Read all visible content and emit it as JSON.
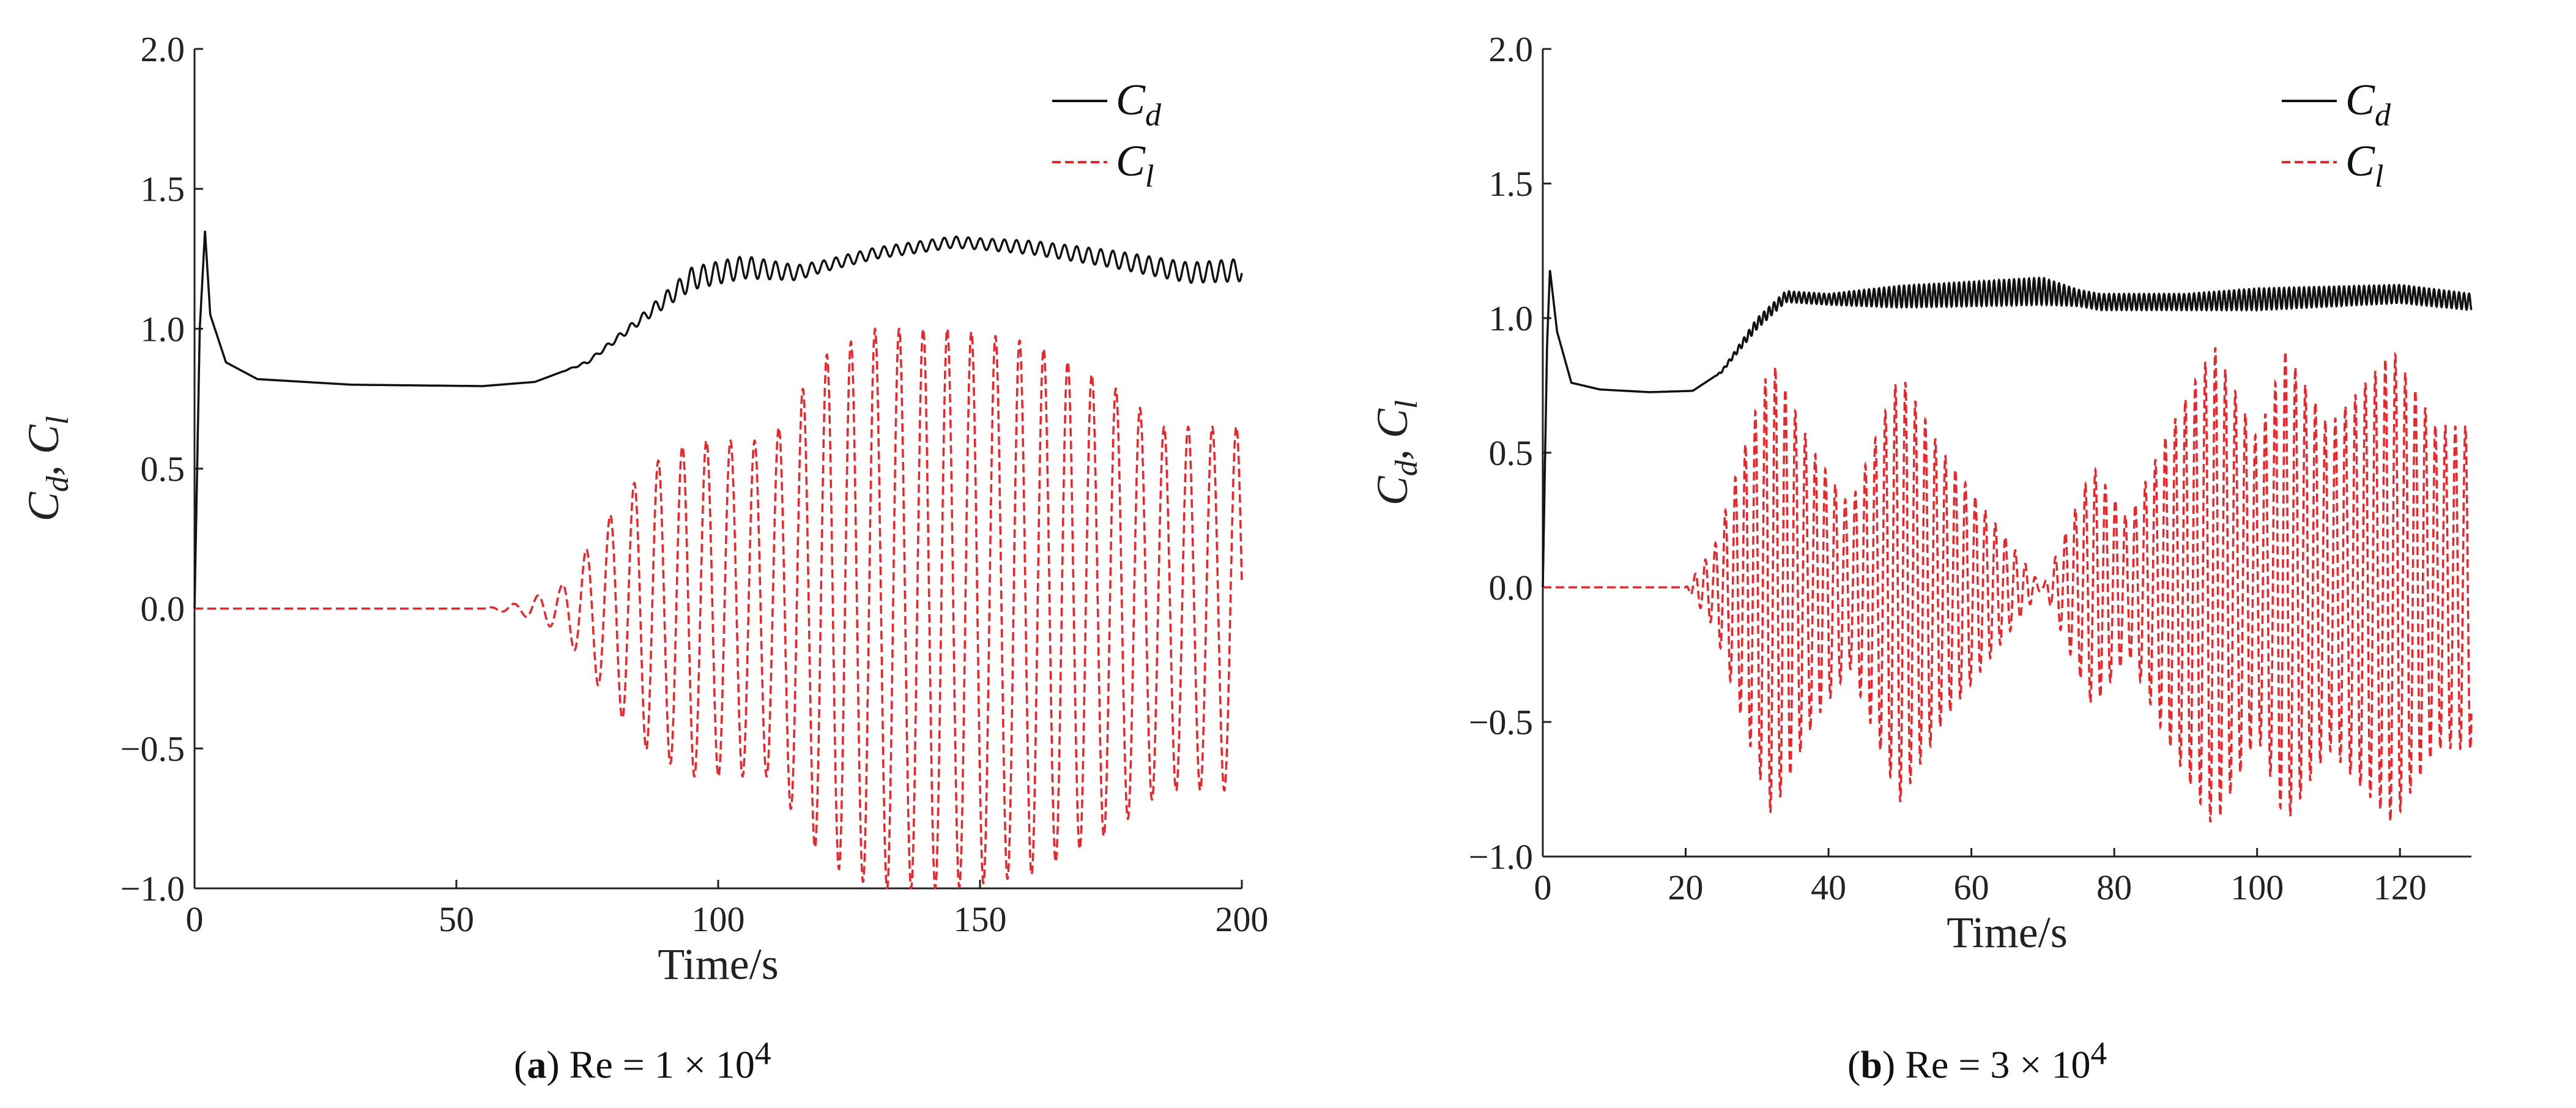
{
  "chart_data": [
    {
      "type": "line",
      "id": "panel-a",
      "xlabel": "Time/s",
      "ylabel": [
        "C",
        "d",
        ", C",
        "l"
      ],
      "xlim": [
        0,
        200
      ],
      "ylim": [
        -1.0,
        2.0
      ],
      "xticks": [
        0,
        50,
        100,
        150,
        200
      ],
      "xtick_labels": [
        "0",
        "50",
        "100",
        "150",
        "200"
      ],
      "yticks": [
        2.0,
        1.5,
        1.0,
        0.5,
        0.0,
        -0.5,
        -1.0
      ],
      "ytick_labels": [
        "2.0",
        "1.5",
        "1.0",
        "0.5",
        "0.0",
        "−0.5",
        "−1.0"
      ],
      "caption": {
        "letter": "a",
        "text": " Re = 1 × 10",
        "exp": "4"
      },
      "series": [
        {
          "name": "C",
          "sub": "d",
          "color": "#111111",
          "style": "solid",
          "description": "drag: spike to 1.35 at t≈2, settles 0.8, rises to ~1.25 with small oscillations"
        },
        {
          "name": "C",
          "sub": "l",
          "color": "#e8262b",
          "style": "dashed",
          "description": "lift: 0 until t≈60, then growing oscillations up to ±1.0"
        }
      ],
      "sim": {
        "tmax": 200,
        "cd_base": [
          [
            0,
            0.0
          ],
          [
            1,
            1.0
          ],
          [
            2,
            1.35
          ],
          [
            3,
            1.05
          ],
          [
            6,
            0.88
          ],
          [
            12,
            0.82
          ],
          [
            30,
            0.8
          ],
          [
            55,
            0.795
          ],
          [
            65,
            0.81
          ],
          [
            75,
            0.88
          ],
          [
            85,
            1.03
          ],
          [
            95,
            1.18
          ],
          [
            105,
            1.22
          ],
          [
            115,
            1.2
          ],
          [
            130,
            1.27
          ],
          [
            145,
            1.31
          ],
          [
            160,
            1.29
          ],
          [
            175,
            1.25
          ],
          [
            190,
            1.2
          ],
          [
            200,
            1.21
          ]
        ],
        "cd_osc": [
          [
            0,
            0
          ],
          [
            70,
            0
          ],
          [
            85,
            0.015
          ],
          [
            95,
            0.04
          ],
          [
            105,
            0.04
          ],
          [
            120,
            0.02
          ],
          [
            150,
            0.02
          ],
          [
            200,
            0.04
          ]
        ],
        "cd_period": 2.3,
        "cl_amp": [
          [
            0,
            0
          ],
          [
            55,
            0
          ],
          [
            62,
            0.02
          ],
          [
            70,
            0.08
          ],
          [
            78,
            0.3
          ],
          [
            86,
            0.5
          ],
          [
            95,
            0.6
          ],
          [
            110,
            0.6
          ],
          [
            120,
            0.9
          ],
          [
            130,
            1.0
          ],
          [
            145,
            1.0
          ],
          [
            160,
            0.95
          ],
          [
            175,
            0.8
          ],
          [
            185,
            0.65
          ],
          [
            200,
            0.65
          ]
        ],
        "cl_period": 4.6,
        "cl_offset": 0.0
      }
    },
    {
      "type": "line",
      "id": "panel-b",
      "xlabel": "Time/s",
      "ylabel": [
        "C",
        "d",
        ", C",
        "l"
      ],
      "xlim": [
        0,
        130
      ],
      "ylim": [
        -1.0,
        2.0
      ],
      "xticks": [
        0,
        20,
        40,
        60,
        80,
        100,
        120
      ],
      "xtick_labels": [
        "0",
        "20",
        "40",
        "60",
        "80",
        "100",
        "120"
      ],
      "yticks": [
        2.0,
        1.5,
        1.0,
        0.5,
        0.0,
        -0.5,
        -1.0
      ],
      "ytick_labels": [
        "2.0",
        "1.5",
        "1.0",
        "0.5",
        "0.0",
        "−0.5",
        "−1.0"
      ],
      "caption": {
        "letter": "b",
        "text": " Re = 3 × 10",
        "exp": "4"
      },
      "series": [
        {
          "name": "C",
          "sub": "d",
          "color": "#111111",
          "style": "solid",
          "description": "drag: spike to 1.18 at t≈1, settles 0.72, rises to ~1.08 with oscillations"
        },
        {
          "name": "C",
          "sub": "l",
          "color": "#e8262b",
          "style": "dashed",
          "description": "lift: 0 until t≈20, beating oscillations up to ±0.9"
        }
      ],
      "sim": {
        "tmax": 130,
        "cd_base": [
          [
            0,
            0.0
          ],
          [
            0.6,
            0.9
          ],
          [
            1,
            1.18
          ],
          [
            2,
            0.95
          ],
          [
            4,
            0.76
          ],
          [
            8,
            0.735
          ],
          [
            15,
            0.725
          ],
          [
            21,
            0.73
          ],
          [
            25,
            0.8
          ],
          [
            30,
            0.98
          ],
          [
            34,
            1.08
          ],
          [
            40,
            1.07
          ],
          [
            50,
            1.08
          ],
          [
            60,
            1.09
          ],
          [
            70,
            1.1
          ],
          [
            78,
            1.06
          ],
          [
            90,
            1.06
          ],
          [
            100,
            1.07
          ],
          [
            110,
            1.08
          ],
          [
            120,
            1.09
          ],
          [
            130,
            1.06
          ]
        ],
        "cd_osc": [
          [
            0,
            0
          ],
          [
            24,
            0
          ],
          [
            30,
            0.02
          ],
          [
            40,
            0.02
          ],
          [
            50,
            0.04
          ],
          [
            70,
            0.05
          ],
          [
            75,
            0.03
          ],
          [
            90,
            0.03
          ],
          [
            100,
            0.04
          ],
          [
            130,
            0.03
          ]
        ],
        "cd_period": 0.7,
        "cl_amp": [
          [
            0,
            0
          ],
          [
            20,
            0
          ],
          [
            24,
            0.15
          ],
          [
            28,
            0.5
          ],
          [
            32,
            0.85
          ],
          [
            38,
            0.5
          ],
          [
            43,
            0.3
          ],
          [
            50,
            0.8
          ],
          [
            56,
            0.5
          ],
          [
            63,
            0.25
          ],
          [
            70,
            0.0
          ],
          [
            77,
            0.45
          ],
          [
            82,
            0.25
          ],
          [
            87,
            0.55
          ],
          [
            94,
            0.9
          ],
          [
            100,
            0.55
          ],
          [
            104,
            0.88
          ],
          [
            110,
            0.6
          ],
          [
            119,
            0.88
          ],
          [
            125,
            0.6
          ],
          [
            130,
            0.6
          ]
        ],
        "cl_period": 1.4,
        "cl_offset": 0.0
      }
    }
  ]
}
